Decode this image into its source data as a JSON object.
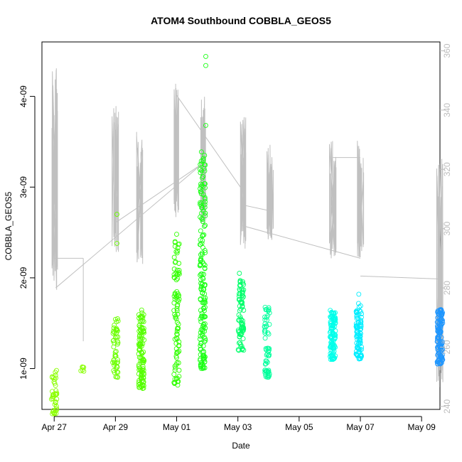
{
  "chart_data": {
    "type": "scatter",
    "title": "ATOM4 Southbound COBBLA_GEOS5",
    "xlabel": "Date",
    "ylabel": "COBBLA_GEOS5",
    "x_axis": {
      "unit": "days since Apr 27",
      "range": [
        -0.4,
        12.6
      ],
      "ticks": [
        {
          "value": 0,
          "label": "Apr 27"
        },
        {
          "value": 2,
          "label": "Apr 29"
        },
        {
          "value": 4,
          "label": "May 01"
        },
        {
          "value": 6,
          "label": "May 03"
        },
        {
          "value": 8,
          "label": "May 05"
        },
        {
          "value": 10,
          "label": "May 07"
        },
        {
          "value": 12,
          "label": "May 09"
        }
      ]
    },
    "y_axis_left": {
      "range": [
        5.5e-10,
        4.6e-09
      ],
      "ticks": [
        {
          "value": 1e-09,
          "label": "1e-09"
        },
        {
          "value": 2e-09,
          "label": "2e-09"
        },
        {
          "value": 3e-09,
          "label": "3e-09"
        },
        {
          "value": 4e-09,
          "label": "4e-09"
        }
      ]
    },
    "y_axis_right": {
      "range": [
        239,
        363
      ],
      "color": "#bdbdbd",
      "ticks": [
        {
          "value": 240,
          "label": "240"
        },
        {
          "value": 260,
          "label": "260"
        },
        {
          "value": 280,
          "label": "280"
        },
        {
          "value": 300,
          "label": "300"
        },
        {
          "value": 320,
          "label": "320"
        },
        {
          "value": 340,
          "label": "340"
        },
        {
          "value": 360,
          "label": "360"
        }
      ]
    },
    "series": [
      {
        "kind": "points",
        "marker": "open-circle",
        "color_note": "color varies with date: yellow-green early to blue late",
        "clusters": [
          {
            "x": 0.0,
            "color": "#8bff00",
            "y_min": 5e-10,
            "y_max": 1e-09,
            "n": 40
          },
          {
            "x": 0.95,
            "color": "#87ff00",
            "y_min": 9.7e-10,
            "y_max": 1.02e-09,
            "n": 6
          },
          {
            "x": 2.0,
            "color": "#6bff00",
            "y_min": 9e-10,
            "y_max": 1.55e-09,
            "n": 50
          },
          {
            "x": 2.85,
            "color": "#55ff00",
            "y_min": 7.8e-10,
            "y_max": 1.68e-09,
            "n": 110
          },
          {
            "x": 4.0,
            "color": "#30ff00",
            "y_min": 8e-10,
            "y_max": 2.45e-09,
            "n": 90
          },
          {
            "x": 4.85,
            "color": "#1aff14",
            "y_min": 1e-09,
            "y_max": 3.4e-09,
            "n": 180
          },
          {
            "x": 6.1,
            "color": "#00ff6a",
            "y_min": 1.2e-09,
            "y_max": 2.05e-09,
            "n": 80
          },
          {
            "x": 6.95,
            "color": "#00ff9c",
            "y_min": 9e-10,
            "y_max": 1.68e-09,
            "n": 60
          },
          {
            "x": 9.1,
            "color": "#00ffea",
            "y_min": 1.1e-09,
            "y_max": 1.65e-09,
            "n": 110
          },
          {
            "x": 9.95,
            "color": "#00eeff",
            "y_min": 1.1e-09,
            "y_max": 1.72e-09,
            "n": 90
          },
          {
            "x": 12.6,
            "color": "#1e96ff",
            "y_min": 1.05e-09,
            "y_max": 1.65e-09,
            "n": 120
          }
        ],
        "outliers": [
          {
            "x": 2.05,
            "y": 2.7e-09
          },
          {
            "x": 2.05,
            "y": 2.38e-09
          },
          {
            "x": 4.95,
            "y": 4.44e-09
          },
          {
            "x": 4.95,
            "y": 4.34e-09
          },
          {
            "x": 4.95,
            "y": 3.68e-09
          },
          {
            "x": 6.05,
            "y": 2.05e-09
          },
          {
            "x": 9.95,
            "y": 1.82e-09
          },
          {
            "x": 4.0,
            "y": 2.48e-09
          }
        ]
      },
      {
        "kind": "line",
        "axis": "right",
        "color": "#c0c0c0",
        "description": "altitude trace (right axis)",
        "bursts": [
          {
            "x": 0.0,
            "low": 278,
            "high": 359
          },
          {
            "x": 2.0,
            "low": 292,
            "high": 343
          },
          {
            "x": 2.8,
            "low": 288,
            "high": 337
          },
          {
            "x": 4.0,
            "low": 303,
            "high": 349
          },
          {
            "x": 4.85,
            "low": 300,
            "high": 345
          },
          {
            "x": 6.15,
            "low": 293,
            "high": 338
          },
          {
            "x": 7.05,
            "low": 296,
            "high": 329
          },
          {
            "x": 9.1,
            "low": 289,
            "high": 330
          },
          {
            "x": 10.0,
            "low": 290,
            "high": 330
          },
          {
            "x": 12.6,
            "low": 246,
            "high": 324
          }
        ],
        "connectors": [
          [
            0.0,
            290,
            0.95,
            290
          ],
          [
            0.95,
            290,
            0.95,
            262
          ],
          [
            0.05,
            280,
            4.85,
            322
          ],
          [
            2.0,
            302,
            4.85,
            322
          ],
          [
            4.0,
            345,
            6.15,
            313
          ],
          [
            6.15,
            308,
            7.05,
            306
          ],
          [
            6.15,
            301,
            10.0,
            290
          ],
          [
            9.1,
            324,
            10.0,
            324
          ],
          [
            10.0,
            284,
            12.6,
            283
          ]
        ]
      }
    ],
    "grid": false,
    "legend": "none"
  }
}
